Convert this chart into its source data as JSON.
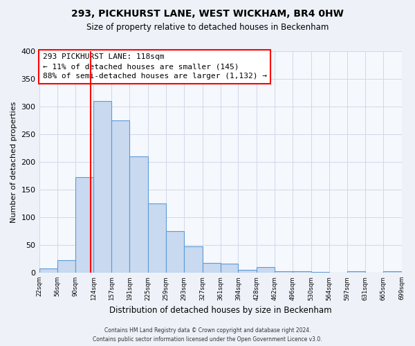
{
  "title": "293, PICKHURST LANE, WEST WICKHAM, BR4 0HW",
  "subtitle": "Size of property relative to detached houses in Beckenham",
  "xlabel": "Distribution of detached houses by size in Beckenham",
  "ylabel": "Number of detached properties",
  "bin_edges": [
    22,
    56,
    90,
    124,
    157,
    191,
    225,
    259,
    293,
    327,
    361,
    394,
    428,
    462,
    496,
    530,
    564,
    597,
    631,
    665,
    699
  ],
  "bar_heights": [
    8,
    22,
    173,
    310,
    275,
    210,
    125,
    75,
    47,
    17,
    16,
    5,
    10,
    2,
    2,
    1,
    0,
    2,
    0,
    3
  ],
  "bar_color": "#c9d9f0",
  "bar_edge_color": "#5b9bd5",
  "vline_x": 118,
  "vline_color": "red",
  "ylim": [
    0,
    400
  ],
  "yticks": [
    0,
    50,
    100,
    150,
    200,
    250,
    300,
    350,
    400
  ],
  "annotation_title": "293 PICKHURST LANE: 118sqm",
  "annotation_line1": "← 11% of detached houses are smaller (145)",
  "annotation_line2": "88% of semi-detached houses are larger (1,132) →",
  "annotation_box_color": "red",
  "footnote1": "Contains HM Land Registry data © Crown copyright and database right 2024.",
  "footnote2": "Contains public sector information licensed under the Open Government Licence v3.0.",
  "bg_color": "#eef2f8",
  "plot_bg_color": "#f5f8fd",
  "grid_color": "#d0d8e8"
}
